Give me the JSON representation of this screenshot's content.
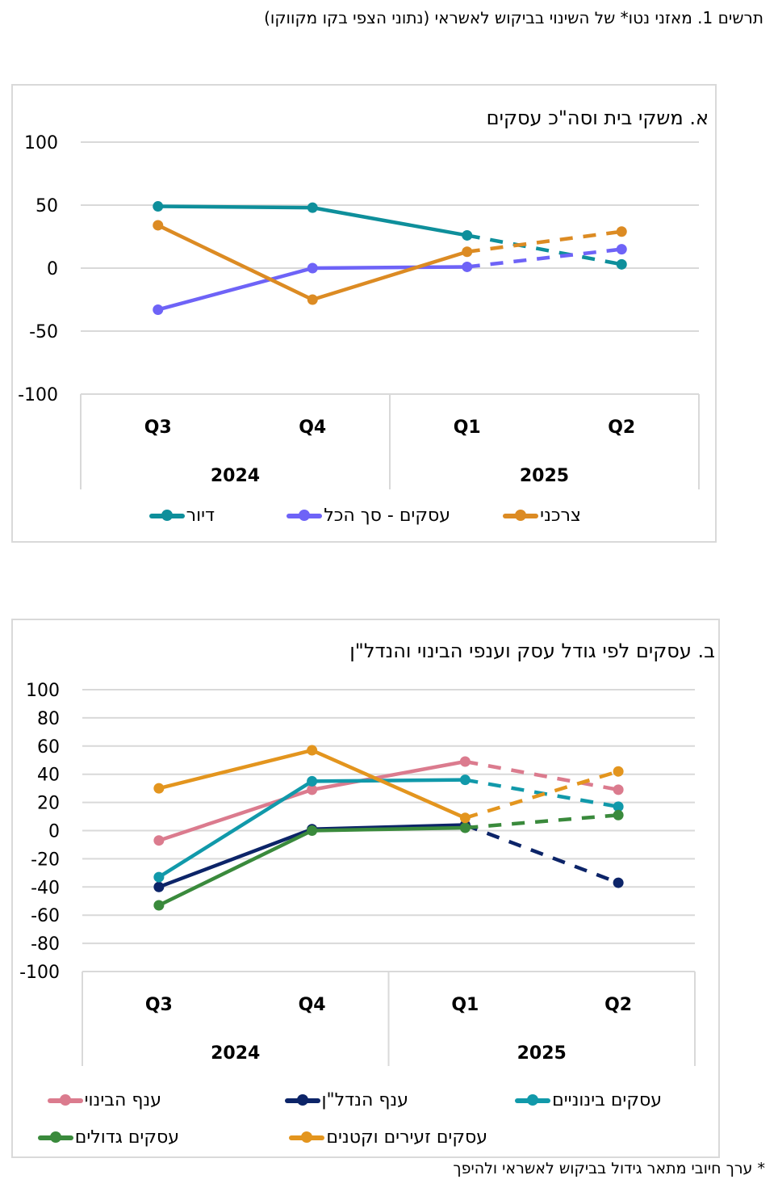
{
  "figure_title": "תרשים 1. מאזני נטו* של השינוי בביקוש לאשראי (נתוני הצפי בקו מקווקו)",
  "footnote": "* ערך חיובי מתאר גידול בביקוש לאשראי ולהיפך",
  "chart_data": [
    {
      "type": "line",
      "title": "א. משקי בית וסה\"כ עסקים",
      "xlabel": "",
      "ylabel": "",
      "ylim": [
        -100,
        100
      ],
      "yticks": [
        100,
        50,
        0,
        -50,
        -100
      ],
      "ytick_labels": [
        "100",
        "50",
        "0",
        "-50",
        "-100"
      ],
      "grid": true,
      "categories": [
        "Q3",
        "Q4",
        "Q1",
        "Q2"
      ],
      "year_groups": [
        {
          "label": "2024",
          "categories": [
            "Q3",
            "Q4"
          ]
        },
        {
          "label": "2025",
          "categories": [
            "Q1",
            "Q2"
          ]
        }
      ],
      "forecast_from_index": 2,
      "legend_position": "bottom",
      "series": [
        {
          "name": "דיור",
          "color": "#0E8F9B",
          "values": [
            49,
            48,
            26,
            3
          ]
        },
        {
          "name": "עסקים - סך הכל",
          "color": "#6E63F7",
          "values": [
            -33,
            0,
            1,
            15
          ]
        },
        {
          "name": "צרכני",
          "color": "#DC8B23",
          "values": [
            34,
            -25,
            13,
            29
          ]
        }
      ]
    },
    {
      "type": "line",
      "title": "ב. עסקים לפי גודל עסק וענפי הבינוי והנדל\"ן",
      "xlabel": "",
      "ylabel": "",
      "ylim": [
        -100,
        100
      ],
      "yticks": [
        100,
        80,
        60,
        40,
        20,
        0,
        -20,
        -40,
        -60,
        -80,
        -100
      ],
      "ytick_labels": [
        "100",
        "80",
        "60",
        "40",
        "20",
        "0",
        "-20",
        "-40",
        "-60",
        "-80",
        "-100"
      ],
      "grid": true,
      "categories": [
        "Q3",
        "Q4",
        "Q1",
        "Q2"
      ],
      "year_groups": [
        {
          "label": "2024",
          "categories": [
            "Q3",
            "Q4"
          ]
        },
        {
          "label": "2025",
          "categories": [
            "Q1",
            "Q2"
          ]
        }
      ],
      "forecast_from_index": 2,
      "legend_position": "bottom",
      "series": [
        {
          "name": "ענף הבינוי",
          "color": "#DB7B8E",
          "values": [
            -7,
            29,
            49,
            29
          ]
        },
        {
          "name": "ענף הנדל\"ן",
          "color": "#0C2468",
          "values": [
            -40,
            1,
            4,
            -37
          ]
        },
        {
          "name": "עסקים בינוניים",
          "color": "#1199AA",
          "values": [
            -33,
            35,
            36,
            17
          ]
        },
        {
          "name": "עסקים גדולים",
          "color": "#3A8A3C",
          "values": [
            -53,
            0,
            2,
            11
          ]
        },
        {
          "name": "עסקים זעירים וקטנים",
          "color": "#E3951E",
          "values": [
            30,
            57,
            9,
            42
          ]
        }
      ]
    }
  ]
}
